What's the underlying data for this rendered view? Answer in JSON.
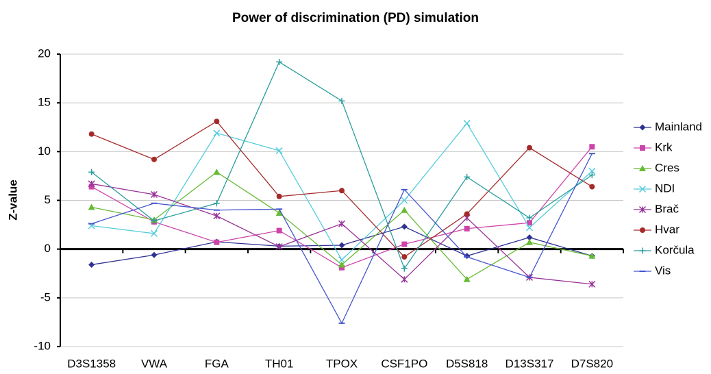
{
  "chart_data": {
    "type": "line",
    "title": "Power of discrimination (PD) simulation",
    "y_label": "Z-value",
    "categories": [
      "D3S1358",
      "VWA",
      "FGA",
      "TH01",
      "TPOX",
      "CSF1PO",
      "D5S818",
      "D13S317",
      "D7S820"
    ],
    "ylim": [
      -10,
      20
    ],
    "yticks": [
      -10,
      -5,
      0,
      5,
      10,
      15,
      20
    ],
    "grid": true,
    "legend": "right",
    "series": [
      {
        "name": "Mainland",
        "color": "#2e3192",
        "marker": "diamond",
        "values": [
          -1.6,
          -0.6,
          0.75,
          0.3,
          0.4,
          2.3,
          -0.7,
          1.2,
          -0.7
        ]
      },
      {
        "name": "Krk",
        "color": "#cc44aa",
        "marker": "square",
        "values": [
          6.4,
          2.8,
          0.7,
          1.9,
          -1.9,
          0.5,
          2.1,
          2.7,
          10.5
        ]
      },
      {
        "name": "Cres",
        "color": "#66bb33",
        "marker": "triangle",
        "values": [
          4.3,
          3.0,
          7.9,
          3.7,
          -1.6,
          4.0,
          -3.1,
          0.7,
          -0.7
        ]
      },
      {
        "name": "NDI",
        "color": "#55ccdd",
        "marker": "x",
        "values": [
          2.4,
          1.6,
          11.9,
          10.1,
          -1.1,
          5.0,
          12.9,
          2.2,
          8.0
        ]
      },
      {
        "name": "Brač",
        "color": "#993399",
        "marker": "star",
        "values": [
          6.7,
          5.6,
          3.4,
          0.25,
          2.6,
          -3.1,
          3.2,
          -2.9,
          -3.6
        ]
      },
      {
        "name": "Hvar",
        "color": "#a52a2a",
        "marker": "circle",
        "values": [
          11.8,
          9.2,
          13.1,
          5.4,
          6.0,
          -0.8,
          3.6,
          10.4,
          6.4
        ]
      },
      {
        "name": "Korčula",
        "color": "#2a9d9d",
        "marker": "plus",
        "values": [
          7.9,
          2.9,
          4.7,
          19.2,
          15.2,
          -2.0,
          7.4,
          3.2,
          7.6
        ]
      },
      {
        "name": "Vis",
        "color": "#4455cc",
        "marker": "dash",
        "values": [
          2.6,
          4.7,
          4.0,
          4.1,
          -7.6,
          6.1,
          -0.8,
          -2.9,
          9.8
        ]
      }
    ]
  }
}
